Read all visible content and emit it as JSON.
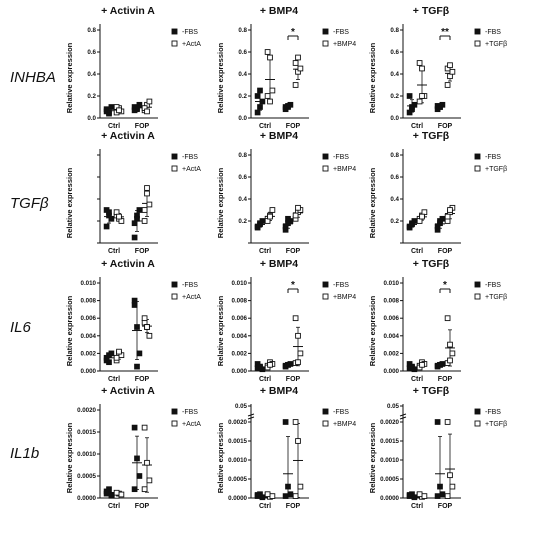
{
  "figure": {
    "row_labels": [
      "INHBA",
      "TGFβ",
      "IL6",
      "IL1b"
    ]
  },
  "chart_data": [
    {
      "type": "scatter",
      "gene": "INHBA",
      "title": "+ Activin A",
      "ylabel": "Relative expression",
      "categories": [
        "Ctrl",
        "FOP"
      ],
      "ylim": [
        0,
        0.8
      ],
      "yticks": [
        "0.0",
        "0.2",
        "0.4",
        "0.6",
        "0.8"
      ],
      "series": [
        {
          "name": "-FBS",
          "marker": "filled-square",
          "values": [
            [
              0.08,
              0.04,
              0.1,
              0.06,
              0.05
            ],
            [
              0.1,
              0.08,
              0.12,
              0.07,
              0.09
            ]
          ]
        },
        {
          "name": "+ActA",
          "marker": "open-square",
          "values": [
            [
              0.05,
              0.09,
              0.06,
              0.1,
              0.07
            ],
            [
              0.07,
              0.12,
              0.15,
              0.09,
              0.06
            ]
          ]
        }
      ],
      "significance": []
    },
    {
      "type": "scatter",
      "gene": "INHBA",
      "title": "+ BMP4",
      "ylabel": "Relative expression",
      "categories": [
        "Ctrl",
        "FOP"
      ],
      "ylim": [
        0,
        0.8
      ],
      "yticks": [
        "0.0",
        "0.2",
        "0.4",
        "0.6",
        "0.8"
      ],
      "series": [
        {
          "name": "-FBS",
          "marker": "filled-square",
          "values": [
            [
              0.05,
              0.1,
              0.15,
              0.2,
              0.25
            ],
            [
              0.08,
              0.1,
              0.12,
              0.1,
              0.11
            ]
          ]
        },
        {
          "name": "+BMP4",
          "marker": "open-square",
          "values": [
            [
              0.6,
              0.55,
              0.25,
              0.2,
              0.15
            ],
            [
              0.3,
              0.42,
              0.45,
              0.5,
              0.55
            ]
          ]
        }
      ],
      "significance": [
        {
          "group": "FOP",
          "label": "*"
        }
      ]
    },
    {
      "type": "scatter",
      "gene": "INHBA",
      "title": "+ TGFβ",
      "ylabel": "Relative expression",
      "categories": [
        "Ctrl",
        "FOP"
      ],
      "ylim": [
        0,
        0.8
      ],
      "yticks": [
        "0.0",
        "0.2",
        "0.4",
        "0.6",
        "0.8"
      ],
      "series": [
        {
          "name": "-FBS",
          "marker": "filled-square",
          "values": [
            [
              0.05,
              0.08,
              0.12,
              0.2,
              0.1
            ],
            [
              0.08,
              0.1,
              0.12,
              0.11,
              0.1
            ]
          ]
        },
        {
          "name": "+TGFβ",
          "marker": "open-square",
          "values": [
            [
              0.5,
              0.45,
              0.2,
              0.15,
              0.2
            ],
            [
              0.3,
              0.38,
              0.42,
              0.45,
              0.48
            ]
          ]
        }
      ],
      "significance": [
        {
          "group": "FOP",
          "label": "**"
        }
      ]
    },
    {
      "type": "scatter",
      "gene": "TGFβ",
      "title": "+ Activin A",
      "ylabel": "Relative expression",
      "categories": [
        "Ctrl",
        "FOP"
      ],
      "ylim": [
        0,
        0.8
      ],
      "yticks": [
        "",
        "",
        "",
        "",
        ""
      ],
      "series": [
        {
          "name": "-FBS",
          "marker": "filled-square",
          "values": [
            [
              0.3,
              0.25,
              0.22,
              0.15,
              0.28
            ],
            [
              0.18,
              0.25,
              0.3,
              0.05,
              0.22
            ]
          ]
        },
        {
          "name": "+ActA",
          "marker": "open-square",
          "values": [
            [
              0.25,
              0.22,
              0.2,
              0.28,
              0.24
            ],
            [
              0.3,
              0.45,
              0.35,
              0.2,
              0.5
            ]
          ]
        }
      ],
      "significance": []
    },
    {
      "type": "scatter",
      "gene": "TGFβ",
      "title": "+ BMP4",
      "ylabel": "Relative expression",
      "categories": [
        "Ctrl",
        "FOP"
      ],
      "ylim": [
        0,
        0.8
      ],
      "yticks": [
        "",
        "0.2",
        "0.4",
        "0.6",
        "0.8"
      ],
      "series": [
        {
          "name": "-FBS",
          "marker": "filled-square",
          "values": [
            [
              0.15,
              0.18,
              0.2,
              0.14,
              0.17
            ],
            [
              0.12,
              0.18,
              0.2,
              0.15,
              0.22
            ]
          ]
        },
        {
          "name": "+BMP4",
          "marker": "open-square",
          "values": [
            [
              0.22,
              0.25,
              0.3,
              0.2,
              0.24
            ],
            [
              0.22,
              0.28,
              0.3,
              0.25,
              0.32
            ]
          ]
        }
      ],
      "significance": []
    },
    {
      "type": "scatter",
      "gene": "TGFβ",
      "title": "+ TGFβ",
      "ylabel": "Relative expression",
      "categories": [
        "Ctrl",
        "FOP"
      ],
      "ylim": [
        0,
        0.8
      ],
      "yticks": [
        "",
        "0.2",
        "0.4",
        "0.6",
        "0.8"
      ],
      "series": [
        {
          "name": "-FBS",
          "marker": "filled-square",
          "values": [
            [
              0.15,
              0.18,
              0.2,
              0.14,
              0.17
            ],
            [
              0.12,
              0.2,
              0.22,
              0.15,
              0.18
            ]
          ]
        },
        {
          "name": "+TGFβ",
          "marker": "open-square",
          "values": [
            [
              0.22,
              0.25,
              0.28,
              0.2,
              0.24
            ],
            [
              0.2,
              0.28,
              0.32,
              0.24,
              0.3
            ]
          ]
        }
      ],
      "significance": []
    },
    {
      "type": "scatter",
      "gene": "IL6",
      "title": "+ Activin A",
      "ylabel": "Relative expression",
      "categories": [
        "Ctrl",
        "FOP"
      ],
      "ylim": [
        0,
        0.01
      ],
      "yticks": [
        "0.000",
        "0.002",
        "0.004",
        "0.006",
        "0.008",
        "0.010"
      ],
      "series": [
        {
          "name": "-FBS",
          "marker": "filled-square",
          "values": [
            [
              0.0015,
              0.001,
              0.002,
              0.0012,
              0.0018
            ],
            [
              0.008,
              0.005,
              0.002,
              0.0075,
              0.0005
            ]
          ]
        },
        {
          "name": "+ActA",
          "marker": "open-square",
          "values": [
            [
              0.0012,
              0.002,
              0.0018,
              0.0015,
              0.0022
            ],
            [
              0.0055,
              0.005,
              0.004,
              0.006,
              0.005
            ]
          ]
        }
      ],
      "significance": []
    },
    {
      "type": "scatter",
      "gene": "IL6",
      "title": "+ BMP4",
      "ylabel": "Relative expression",
      "categories": [
        "Ctrl",
        "FOP"
      ],
      "ylim": [
        0,
        0.01
      ],
      "yticks": [
        "0.000",
        "0.002",
        "0.004",
        "0.006",
        "0.008",
        "0.010"
      ],
      "series": [
        {
          "name": "-FBS",
          "marker": "filled-square",
          "values": [
            [
              0.0003,
              0.0005,
              0.0002,
              0.0008,
              0.0004
            ],
            [
              0.0006,
              0.0007,
              0.0008,
              0.0005,
              0.0007
            ]
          ]
        },
        {
          "name": "+BMP4",
          "marker": "open-square",
          "values": [
            [
              0.0006,
              0.001,
              0.0008,
              0.0004,
              0.0007
            ],
            [
              0.006,
              0.004,
              0.002,
              0.0009,
              0.001
            ]
          ]
        }
      ],
      "significance": [
        {
          "group": "FOP",
          "label": "*"
        }
      ]
    },
    {
      "type": "scatter",
      "gene": "IL6",
      "title": "+ TGFβ",
      "ylabel": "Relative expression",
      "categories": [
        "Ctrl",
        "FOP"
      ],
      "ylim": [
        0,
        0.01
      ],
      "yticks": [
        "0.000",
        "0.002",
        "0.004",
        "0.006",
        "0.008",
        "0.010"
      ],
      "series": [
        {
          "name": "-FBS",
          "marker": "filled-square",
          "values": [
            [
              0.0003,
              0.0005,
              0.0002,
              0.0008,
              0.0004
            ],
            [
              0.0006,
              0.0007,
              0.0008,
              0.0005,
              0.0007
            ]
          ]
        },
        {
          "name": "+TGFβ",
          "marker": "open-square",
          "values": [
            [
              0.0006,
              0.001,
              0.0008,
              0.0004,
              0.0007
            ],
            [
              0.006,
              0.003,
              0.002,
              0.0009,
              0.0012
            ]
          ]
        }
      ],
      "significance": [
        {
          "group": "FOP",
          "label": "*"
        }
      ]
    },
    {
      "type": "scatter",
      "gene": "IL1b",
      "title": "+ Activin A",
      "ylabel": "Relative expression",
      "categories": [
        "Ctrl",
        "FOP"
      ],
      "ylim": [
        0,
        0.002
      ],
      "yticks": [
        "0.0000",
        "0.0005",
        "0.0010",
        "0.0015",
        "0.0020"
      ],
      "series": [
        {
          "name": "-FBS",
          "marker": "filled-square",
          "values": [
            [
              0.0001,
              0.0002,
              5e-05,
              0.00015
            ],
            [
              0.0016,
              0.0009,
              0.0005,
              0.0002
            ]
          ]
        },
        {
          "name": "+ActA",
          "marker": "open-square",
          "values": [
            [
              5e-05,
              0.0001,
              8e-05,
              0.00012
            ],
            [
              0.0016,
              0.0008,
              0.0004,
              0.0002
            ]
          ]
        }
      ],
      "significance": []
    },
    {
      "type": "scatter",
      "gene": "IL1b",
      "title": "+ BMP4",
      "ylabel": "Relative expression",
      "categories": [
        "Ctrl",
        "FOP"
      ],
      "ylim": [
        0,
        0.002
      ],
      "break": true,
      "yticks": [
        "0.0000",
        "0.0005",
        "0.0010",
        "0.0015",
        "0.0020",
        "0.05"
      ],
      "series": [
        {
          "name": "-FBS",
          "marker": "filled-square",
          "values": [
            [
              5e-05,
              0.0001,
              2e-05,
              8e-05
            ],
            [
              0.0021,
              0.0003,
              0.0001,
              5e-05
            ]
          ]
        },
        {
          "name": "+BMP4",
          "marker": "open-square",
          "values": [
            [
              8e-05,
              3e-05,
              5e-05,
              0.0001
            ],
            [
              0.0021,
              0.0015,
              0.0003,
              5e-05
            ]
          ]
        }
      ],
      "significance": []
    },
    {
      "type": "scatter",
      "gene": "IL1b",
      "title": "+ TGFβ",
      "ylabel": "Relative expression",
      "categories": [
        "Ctrl",
        "FOP"
      ],
      "ylim": [
        0,
        0.002
      ],
      "break": true,
      "yticks": [
        "0.0000",
        "0.0005",
        "0.0010",
        "0.0015",
        "0.0020",
        "0.05"
      ],
      "series": [
        {
          "name": "-FBS",
          "marker": "filled-square",
          "values": [
            [
              5e-05,
              0.0001,
              2e-05,
              8e-05
            ],
            [
              0.0021,
              0.0003,
              0.0001,
              5e-05
            ]
          ]
        },
        {
          "name": "+TGFβ",
          "marker": "open-square",
          "values": [
            [
              8e-05,
              3e-05,
              5e-05,
              0.0001
            ],
            [
              0.0021,
              0.0006,
              0.0003,
              5e-05
            ]
          ]
        }
      ],
      "significance": []
    }
  ]
}
